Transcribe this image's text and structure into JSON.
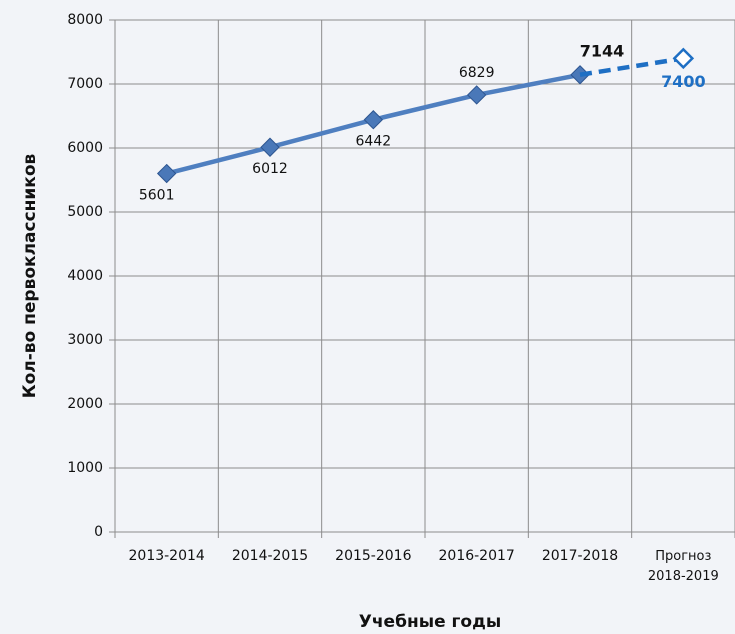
{
  "chart_data": {
    "type": "line",
    "categories": [
      "2013-2014",
      "2014-2015",
      "2015-2016",
      "2016-2017",
      "2017-2018",
      "Прогноз 2018-2019"
    ],
    "series": [
      {
        "color": "#4f7fc0",
        "dashed": false,
        "values": [
          5601,
          6012,
          6442,
          6829,
          7144,
          null
        ]
      },
      {
        "color": "#1e6fc4",
        "dashed": true,
        "values": [
          null,
          null,
          null,
          null,
          7144,
          7400
        ]
      }
    ],
    "ylim": [
      0,
      8000
    ],
    "yticks": [
      0,
      1000,
      2000,
      3000,
      4000,
      5000,
      6000,
      7000,
      8000
    ],
    "grid": true,
    "x_label": "Учебные годы",
    "y_label": "Кол-во первоклассников"
  }
}
